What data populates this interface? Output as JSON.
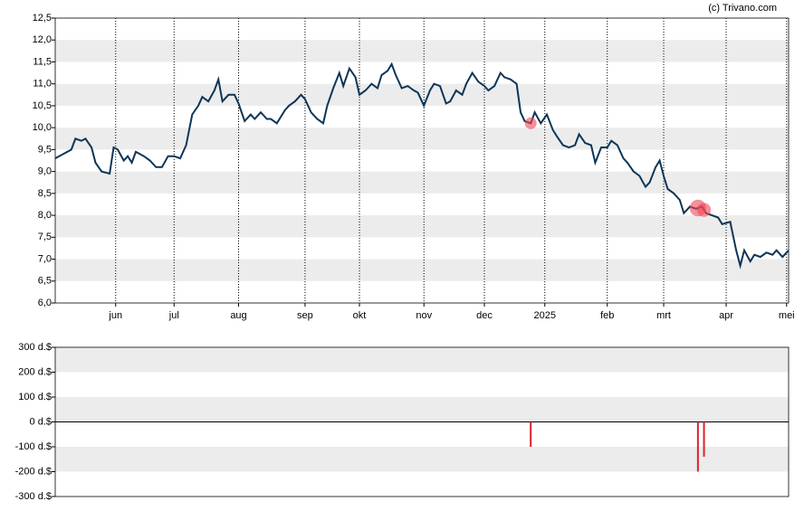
{
  "chart_data": [
    {
      "type": "line",
      "source": "(c) Trivano.com",
      "color": "#0d3557",
      "xlim": [
        0,
        364
      ],
      "ylim": [
        6.0,
        12.5
      ],
      "xticks": [
        {
          "value": 30,
          "label": "jun"
        },
        {
          "value": 59,
          "label": "jul"
        },
        {
          "value": 91,
          "label": "aug"
        },
        {
          "value": 124,
          "label": "sep"
        },
        {
          "value": 151,
          "label": "okt"
        },
        {
          "value": 183,
          "label": "nov"
        },
        {
          "value": 213,
          "label": "dec"
        },
        {
          "value": 243,
          "label": "2025"
        },
        {
          "value": 274,
          "label": "feb"
        },
        {
          "value": 302,
          "label": "mrt"
        },
        {
          "value": 333,
          "label": "apr"
        },
        {
          "value": 363,
          "label": "mei"
        }
      ],
      "yticks": [
        {
          "value": 6.0,
          "label": "6,0"
        },
        {
          "value": 6.5,
          "label": "6,5"
        },
        {
          "value": 7.0,
          "label": "7,0"
        },
        {
          "value": 7.5,
          "label": "7,5"
        },
        {
          "value": 8.0,
          "label": "8,0"
        },
        {
          "value": 8.5,
          "label": "8,5"
        },
        {
          "value": 9.0,
          "label": "9,0"
        },
        {
          "value": 9.5,
          "label": "9,5"
        },
        {
          "value": 10.0,
          "label": "10,0"
        },
        {
          "value": 10.5,
          "label": "10,5"
        },
        {
          "value": 11.0,
          "label": "11,0"
        },
        {
          "value": 11.5,
          "label": "11,5"
        },
        {
          "value": 12.0,
          "label": "12,0"
        },
        {
          "value": 12.5,
          "label": "12,5"
        }
      ],
      "x": [
        0,
        4,
        8,
        10,
        13,
        15,
        18,
        20,
        23,
        27,
        29,
        31,
        34,
        36,
        38,
        40,
        44,
        47,
        50,
        53,
        56,
        59,
        62,
        65,
        68,
        71,
        73,
        76,
        79,
        81,
        83,
        86,
        89,
        91,
        94,
        97,
        99,
        102,
        105,
        107,
        110,
        114,
        116,
        119,
        122,
        124,
        127,
        130,
        133,
        135,
        138,
        141,
        143,
        146,
        149,
        151,
        154,
        157,
        160,
        162,
        165,
        167,
        169,
        172,
        175,
        178,
        180,
        183,
        186,
        188,
        191,
        194,
        196,
        199,
        202,
        204,
        207,
        210,
        213,
        215,
        218,
        221,
        223,
        226,
        229,
        231,
        233,
        236,
        238,
        241,
        244,
        247,
        249,
        252,
        255,
        258,
        260,
        263,
        266,
        268,
        271,
        274,
        276,
        279,
        282,
        284,
        287,
        290,
        293,
        295,
        298,
        300,
        302,
        304,
        307,
        310,
        312,
        315,
        318,
        321,
        323,
        326,
        329,
        331,
        335,
        338,
        340,
        342,
        345,
        347,
        350,
        353,
        356,
        358,
        361,
        364
      ],
      "values": [
        9.3,
        9.4,
        9.5,
        9.75,
        9.7,
        9.75,
        9.55,
        9.2,
        9.0,
        8.95,
        9.55,
        9.5,
        9.25,
        9.35,
        9.2,
        9.45,
        9.35,
        9.25,
        9.1,
        9.1,
        9.35,
        9.35,
        9.3,
        9.6,
        10.3,
        10.5,
        10.7,
        10.6,
        10.85,
        11.1,
        10.6,
        10.75,
        10.75,
        10.55,
        10.15,
        10.3,
        10.2,
        10.35,
        10.2,
        10.2,
        10.1,
        10.4,
        10.5,
        10.6,
        10.75,
        10.65,
        10.35,
        10.2,
        10.1,
        10.5,
        10.9,
        11.25,
        10.95,
        11.35,
        11.15,
        10.75,
        10.85,
        11.0,
        10.9,
        11.2,
        11.3,
        11.45,
        11.2,
        10.9,
        10.95,
        10.85,
        10.8,
        10.5,
        10.85,
        11.0,
        10.95,
        10.55,
        10.6,
        10.85,
        10.75,
        11.0,
        11.25,
        11.05,
        10.95,
        10.85,
        10.95,
        11.25,
        11.15,
        11.1,
        11.0,
        10.35,
        10.15,
        10.1,
        10.35,
        10.1,
        10.3,
        9.95,
        9.8,
        9.6,
        9.55,
        9.6,
        9.85,
        9.65,
        9.6,
        9.2,
        9.55,
        9.55,
        9.7,
        9.6,
        9.3,
        9.2,
        9.0,
        8.9,
        8.65,
        8.75,
        9.1,
        9.25,
        8.9,
        8.6,
        8.5,
        8.35,
        8.05,
        8.2,
        8.15,
        8.2,
        8.05,
        8.0,
        7.95,
        7.8,
        7.85,
        7.2,
        6.85,
        7.2,
        6.95,
        7.1,
        7.05,
        7.15,
        7.1,
        7.2,
        7.05,
        7.2
      ]
    },
    {
      "type": "bar",
      "color": "#d9232e",
      "xlim": [
        0,
        364
      ],
      "ylim": [
        -300,
        300
      ],
      "yticks": [
        {
          "value": -300,
          "label": "-300 d.$"
        },
        {
          "value": -200,
          "label": "-200 d.$"
        },
        {
          "value": -100,
          "label": "-100 d.$"
        },
        {
          "value": 0,
          "label": "0 d.$"
        },
        {
          "value": 100,
          "label": "100 d.$"
        },
        {
          "value": 200,
          "label": "200 d.$"
        },
        {
          "value": 300,
          "label": "300 d.$"
        }
      ],
      "x": [
        236,
        319,
        322
      ],
      "values": [
        -100,
        -200,
        -140
      ]
    }
  ]
}
